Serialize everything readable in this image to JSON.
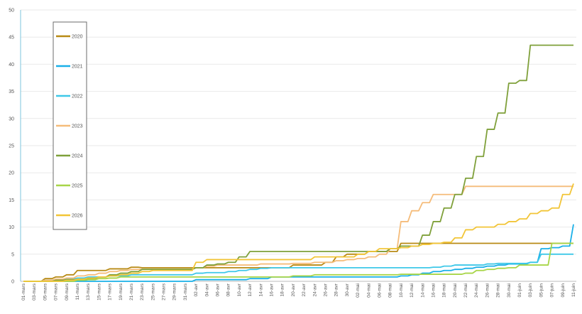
{
  "chart_data": {
    "type": "line",
    "title": "",
    "xlabel": "",
    "ylabel": "",
    "ylim": [
      0,
      50
    ],
    "yticks": [
      0,
      5,
      10,
      15,
      20,
      25,
      30,
      35,
      40,
      45,
      50
    ],
    "grid": true,
    "legend_position": "top-left",
    "categories": [
      "01-mars",
      "03-mars",
      "05-mars",
      "07-mars",
      "09-mars",
      "11-mars",
      "13-mars",
      "15-mars",
      "17-mars",
      "19-mars",
      "21-mars",
      "23-mars",
      "25-mars",
      "27-mars",
      "29-mars",
      "31-mars",
      "02-avr",
      "04-avr",
      "06-avr",
      "08-avr",
      "10-avr",
      "12-avr",
      "14-avr",
      "16-avr",
      "18-avr",
      "20-avr",
      "22-avr",
      "24-avr",
      "26-avr",
      "28-avr",
      "30-avr",
      "02-mai",
      "04-mai",
      "06-mai",
      "08-mai",
      "10-mai",
      "12-mai",
      "14-mai",
      "16-mai",
      "18-mai",
      "20-mai",
      "22-mai",
      "24-mai",
      "26-mai",
      "28-mai",
      "30-mai",
      "01-juin",
      "03-juin",
      "05-juin",
      "07-juin",
      "09-juin",
      "11-juin"
    ],
    "series": [
      {
        "name": "2020",
        "color": "#b88a14",
        "values": [
          0,
          0,
          0.5,
          0.8,
          1.2,
          2.0,
          2.0,
          2.0,
          2.3,
          2.3,
          2.6,
          2.5,
          2.5,
          2.5,
          2.5,
          2.5,
          2.5,
          2.5,
          2.5,
          2.5,
          2.5,
          2.5,
          2.5,
          2.5,
          2.5,
          3.0,
          3.0,
          3.0,
          3.5,
          4.5,
          5.0,
          5.0,
          5.5,
          5.5,
          5.5,
          7.0,
          7.0,
          7.0,
          7.0,
          7.0,
          7.0,
          7.0,
          7.0,
          7.0,
          7.0,
          7.0,
          7.0,
          7.0,
          7.0,
          7.0,
          7.0,
          7.0
        ]
      },
      {
        "name": "2021",
        "color": "#1ab0e8",
        "values": [
          0,
          0,
          0,
          0,
          0,
          0,
          0,
          0,
          0,
          0,
          0,
          0,
          0,
          0,
          0,
          0,
          0.3,
          0.3,
          0.3,
          0.3,
          0.3,
          0.5,
          0.5,
          0.8,
          0.8,
          0.8,
          0.8,
          0.8,
          0.8,
          0.8,
          0.8,
          0.8,
          0.8,
          0.8,
          0.8,
          1.0,
          1.2,
          1.5,
          1.8,
          2.0,
          2.2,
          2.4,
          2.6,
          2.8,
          3.0,
          3.2,
          3.2,
          3.5,
          6.0,
          6.2,
          6.5,
          10.5
        ]
      },
      {
        "name": "2022",
        "color": "#3ec8e8",
        "values": [
          0,
          0,
          0.2,
          0.3,
          0.4,
          0.6,
          0.8,
          0.8,
          1.0,
          1.0,
          1.2,
          1.2,
          1.2,
          1.2,
          1.2,
          1.2,
          1.5,
          1.6,
          1.6,
          1.8,
          2.0,
          2.2,
          2.4,
          2.5,
          2.5,
          2.5,
          2.5,
          2.5,
          2.5,
          2.5,
          2.5,
          2.5,
          2.5,
          2.5,
          2.5,
          2.5,
          2.5,
          2.5,
          2.6,
          2.8,
          3.0,
          3.0,
          3.0,
          3.2,
          3.3,
          3.3,
          3.3,
          3.5,
          5.0,
          5.0,
          5.0,
          5.0
        ]
      },
      {
        "name": "2023",
        "color": "#f5bc7a",
        "values": [
          0,
          0,
          0.2,
          0.4,
          0.6,
          1.0,
          1.2,
          1.5,
          1.8,
          2.0,
          2.2,
          2.2,
          2.2,
          2.2,
          2.2,
          2.2,
          2.5,
          2.8,
          3.0,
          3.0,
          3.0,
          3.0,
          3.2,
          3.2,
          3.2,
          3.3,
          3.3,
          3.5,
          3.5,
          3.8,
          4.0,
          4.2,
          4.5,
          5.0,
          6.0,
          11.0,
          13.0,
          14.5,
          16.0,
          16.0,
          16.0,
          17.5,
          17.5,
          17.5,
          17.5,
          17.5,
          17.5,
          17.5,
          17.5,
          17.5,
          17.5,
          17.5
        ]
      },
      {
        "name": "2024",
        "color": "#7fa03a",
        "values": [
          0,
          0,
          0,
          0.2,
          0.3,
          0.3,
          0.5,
          0.8,
          1.2,
          1.5,
          1.8,
          2.2,
          2.2,
          2.2,
          2.2,
          2.2,
          2.5,
          3.0,
          3.2,
          3.5,
          4.5,
          5.5,
          5.5,
          5.5,
          5.5,
          5.5,
          5.5,
          5.5,
          5.5,
          5.5,
          5.5,
          5.5,
          5.5,
          5.5,
          6.0,
          6.5,
          6.5,
          8.5,
          11.0,
          13.5,
          16.0,
          19.0,
          23.0,
          28.0,
          31.0,
          36.5,
          37.0,
          43.5,
          43.5,
          43.5,
          43.5,
          43.5
        ]
      },
      {
        "name": "2025",
        "color": "#a8d548",
        "values": [
          0,
          0,
          0,
          0,
          0,
          0.2,
          0.3,
          0.5,
          0.6,
          0.8,
          0.8,
          0.8,
          0.8,
          0.8,
          0.8,
          0.8,
          0.8,
          0.8,
          0.8,
          0.8,
          0.8,
          0.8,
          0.8,
          0.8,
          0.8,
          1.0,
          1.0,
          1.2,
          1.2,
          1.2,
          1.2,
          1.2,
          1.2,
          1.2,
          1.2,
          1.3,
          1.3,
          1.3,
          1.3,
          1.3,
          1.3,
          1.5,
          2.0,
          2.2,
          2.4,
          2.5,
          3.0,
          3.0,
          3.0,
          7.0,
          7.0,
          7.0
        ]
      },
      {
        "name": "2026",
        "color": "#f2c537",
        "values": [
          0,
          0,
          0,
          0,
          0.2,
          0.4,
          0.6,
          0.8,
          1.0,
          1.2,
          1.5,
          1.8,
          2.0,
          2.0,
          2.0,
          2.0,
          3.5,
          4.0,
          4.0,
          4.0,
          4.0,
          4.0,
          4.0,
          4.0,
          4.0,
          4.0,
          4.0,
          4.5,
          4.5,
          4.5,
          4.5,
          5.0,
          5.5,
          6.0,
          6.0,
          6.2,
          6.5,
          6.8,
          7.0,
          7.2,
          8.0,
          9.5,
          10.0,
          10.0,
          10.5,
          11.0,
          11.5,
          12.5,
          13.0,
          13.5,
          16.0,
          18.0
        ]
      }
    ]
  }
}
